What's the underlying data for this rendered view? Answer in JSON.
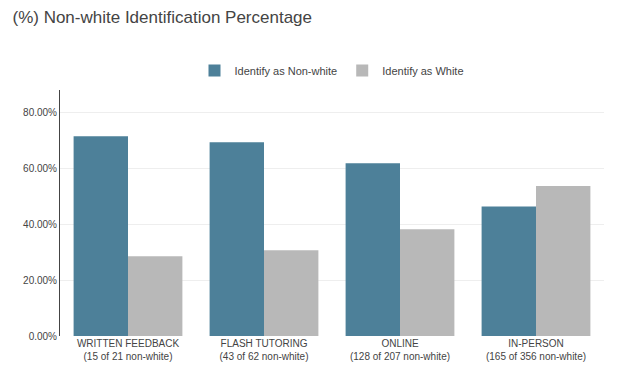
{
  "chart_data": {
    "type": "bar",
    "title": "(%) Non-white Identification Percentage",
    "categories": [
      "WRITTEN FEEDBACK\n(15 of 21 non-white)",
      "FLASH TUTORING\n(43 of 62 non-white)",
      "ONLINE\n(128 of 207 non-white)",
      "IN-PERSON\n(165 of 356 non-white)"
    ],
    "series": [
      {
        "name": "Identify as Non-white",
        "color": "#4d8099",
        "values": [
          0.7143,
          0.6935,
          0.6184,
          0.4635
        ]
      },
      {
        "name": "Identify as White",
        "color": "#b8b8b8",
        "values": [
          0.2857,
          0.3065,
          0.3816,
          0.5365
        ]
      }
    ],
    "ylim": [
      0,
      0.88
    ],
    "yticks": [
      {
        "value": 0.0,
        "label": "0.00%"
      },
      {
        "value": 0.2,
        "label": "20.00%"
      },
      {
        "value": 0.4,
        "label": "40.00%"
      },
      {
        "value": 0.6,
        "label": "60.00%"
      },
      {
        "value": 0.8,
        "label": "80.00%"
      }
    ],
    "grid": true,
    "legend": "top"
  }
}
